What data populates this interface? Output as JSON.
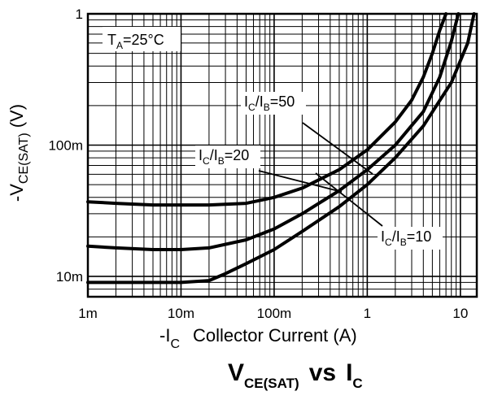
{
  "chart_data": {
    "type": "line",
    "title": {
      "main": "V",
      "main_sub": "CE(SAT)",
      "vs": "vs",
      "var": "I",
      "var_sub": "C"
    },
    "xlabel": {
      "prefix": "-I",
      "sub": "C",
      "text": "Collector Current (A)"
    },
    "ylabel": {
      "prefix": "-V",
      "sub": "CE(SAT)",
      "unit": "(V)"
    },
    "condition": {
      "prefix": "T",
      "sub": "A",
      "text": "=25°C"
    },
    "x_scale": "log",
    "y_scale": "log",
    "xlim": [
      0.001,
      15
    ],
    "ylim": [
      0.007,
      1
    ],
    "grid": true,
    "x_ticks": [
      {
        "value": 0.001,
        "label": "1m"
      },
      {
        "value": 0.01,
        "label": "10m"
      },
      {
        "value": 0.1,
        "label": "100m"
      },
      {
        "value": 1,
        "label": "1"
      },
      {
        "value": 10,
        "label": "10"
      }
    ],
    "y_ticks": [
      {
        "value": 0.01,
        "label": "10m"
      },
      {
        "value": 0.1,
        "label": "100m"
      },
      {
        "value": 1,
        "label": "1"
      }
    ],
    "series": [
      {
        "name": "IC/IB=50",
        "label_pre": "I",
        "label_sub1": "C",
        "label_mid": "/I",
        "label_sub2": "B",
        "label_post": "=50",
        "x": [
          0.001,
          0.002,
          0.005,
          0.01,
          0.02,
          0.05,
          0.1,
          0.2,
          0.5,
          1,
          2,
          3,
          4,
          5,
          6,
          7
        ],
        "y": [
          0.037,
          0.036,
          0.035,
          0.035,
          0.035,
          0.036,
          0.04,
          0.047,
          0.065,
          0.092,
          0.15,
          0.22,
          0.33,
          0.5,
          0.75,
          1.0
        ]
      },
      {
        "name": "IC/IB=20",
        "label_pre": "I",
        "label_sub1": "C",
        "label_mid": "/I",
        "label_sub2": "B",
        "label_post": "=20",
        "x": [
          0.001,
          0.002,
          0.005,
          0.01,
          0.02,
          0.05,
          0.1,
          0.2,
          0.5,
          1,
          2,
          4,
          6,
          8,
          9.5
        ],
        "y": [
          0.017,
          0.0165,
          0.016,
          0.016,
          0.0165,
          0.019,
          0.023,
          0.03,
          0.045,
          0.065,
          0.1,
          0.18,
          0.33,
          0.62,
          1.0
        ]
      },
      {
        "name": "IC/IB=10",
        "label_pre": "I",
        "label_sub1": "C",
        "label_mid": "/I",
        "label_sub2": "B",
        "label_post": "=10",
        "x": [
          0.001,
          0.002,
          0.005,
          0.01,
          0.02,
          0.03,
          0.05,
          0.1,
          0.2,
          0.5,
          1,
          2,
          4,
          8,
          12,
          14
        ],
        "y": [
          0.009,
          0.009,
          0.009,
          0.009,
          0.0093,
          0.0105,
          0.0125,
          0.016,
          0.022,
          0.034,
          0.05,
          0.08,
          0.14,
          0.3,
          0.6,
          1.0
        ]
      }
    ]
  }
}
